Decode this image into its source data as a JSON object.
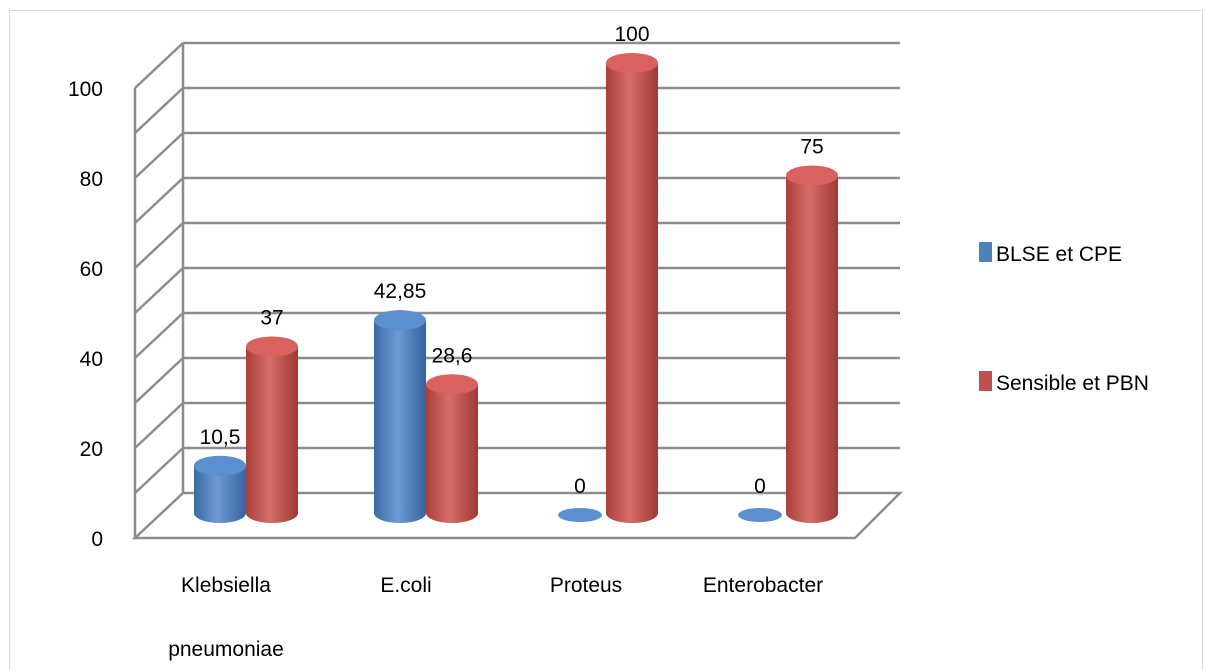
{
  "chart_data": {
    "type": "bar",
    "title": "",
    "xlabel": "",
    "ylabel": "",
    "categories": [
      "Klebsiella pneumoniae",
      "E.coli",
      "Proteus",
      "Enterobacter"
    ],
    "category_lines": [
      [
        "Klebsiella",
        "pneumoniae"
      ],
      [
        "E.coli"
      ],
      [
        "Proteus"
      ],
      [
        "Enterobacter"
      ]
    ],
    "series": [
      {
        "name": "BLSE et CPE",
        "values": [
          10.5,
          42.85,
          0,
          0
        ],
        "labels": [
          "10,5",
          "42,85",
          "0",
          "0"
        ],
        "color": "#4f81bd"
      },
      {
        "name": "Sensible et PBN",
        "values": [
          37,
          28.6,
          100,
          75
        ],
        "labels": [
          "37",
          "28,6",
          "100",
          "75"
        ],
        "color": "#c0504d"
      }
    ],
    "yticks": [
      0,
      20,
      40,
      60,
      80,
      100
    ],
    "ylim": [
      0,
      100
    ],
    "grid": true,
    "legend": "right",
    "three_d": true
  }
}
